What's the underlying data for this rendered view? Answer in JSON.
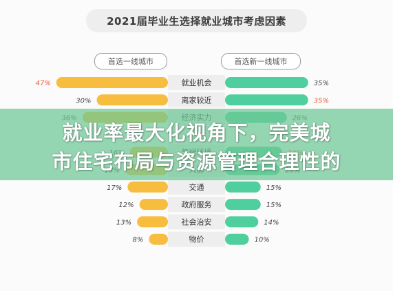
{
  "title": "2021届毕业生选择就业城市考虑因素",
  "left_header": "首选一线城市",
  "right_header": "首选新一线城市",
  "overlay": {
    "line1": "就业率最大化视角下，完美城",
    "line2": "市住宅布局与资源管理合理性的"
  },
  "colors": {
    "left_bar": "#f7bd3e",
    "right_bar": "#4fcf9e",
    "label_bg": "#eeeeee",
    "highlight_text": "#e9583a",
    "normal_text": "#444444"
  },
  "chart_data": {
    "type": "bar",
    "categories": [
      "就业机会",
      "离家较近",
      "经济实力",
      "",
      "气候环境",
      "人脉",
      "交通",
      "政府服务",
      "社会治安",
      "物价"
    ],
    "series": [
      {
        "name": "首选一线城市",
        "values": [
          47,
          30,
          36,
          null,
          16,
          18,
          17,
          12,
          13,
          8
        ],
        "labels": [
          "47%",
          "30%",
          "36%",
          "",
          "16%",
          "18%",
          "17%",
          "12%",
          "13%",
          "8%"
        ],
        "highlight": [
          true,
          false,
          false,
          false,
          false,
          false,
          false,
          false,
          false,
          false
        ]
      },
      {
        "name": "首选新一线城市",
        "values": [
          35,
          35,
          26,
          null,
          24,
          23,
          15,
          15,
          14,
          10
        ],
        "labels": [
          "35%",
          "35%",
          "26%",
          "",
          "24%",
          "23%",
          "15%",
          "15%",
          "14%",
          "10%"
        ],
        "highlight": [
          false,
          true,
          false,
          false,
          true,
          false,
          false,
          false,
          false,
          false
        ]
      }
    ],
    "xlim": [
      0,
      50
    ]
  }
}
